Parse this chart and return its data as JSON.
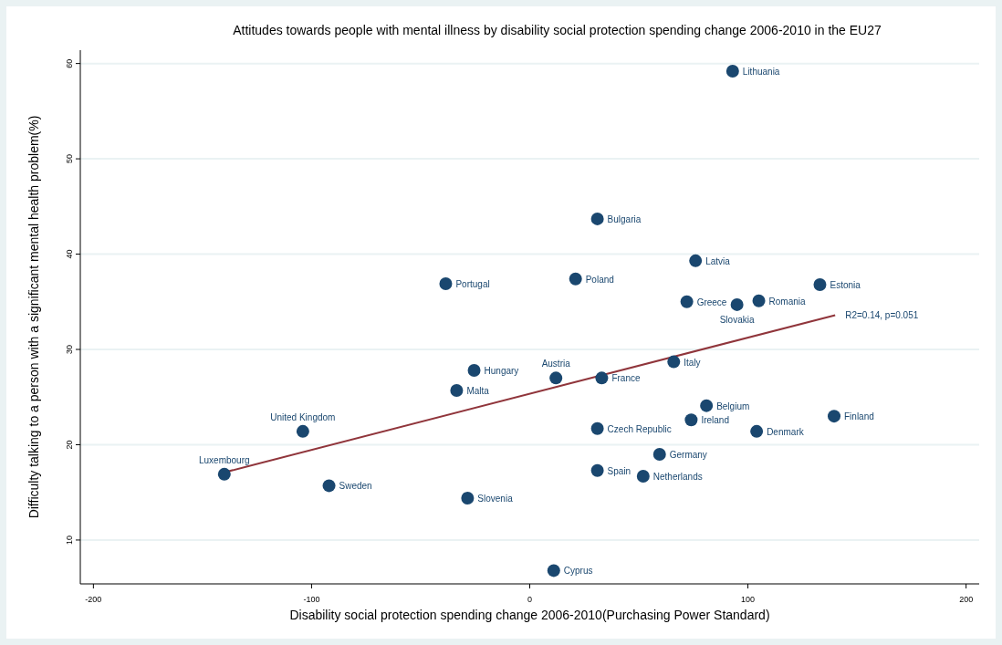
{
  "chart_data": {
    "type": "scatter",
    "title": "Attitudes towards people with mental illness by disability social protection spending change 2006-2010 in the EU27",
    "xlabel": "Disability social protection spending change 2006-2010(Purchasing Power Standard)",
    "ylabel": "Difficulty talking to a person with a significant mental health problem(%)",
    "xlim": [
      -206,
      206
    ],
    "xticks": [
      -200,
      -100,
      0,
      100,
      200
    ],
    "ylim": [
      5.4,
      61.4
    ],
    "yticks": [
      10,
      20,
      30,
      40,
      50,
      60
    ],
    "grid": "y",
    "series": [
      {
        "color": "#1a476f",
        "marker": "circle",
        "x": [
          93,
          31,
          76,
          133,
          21,
          -38.5,
          72,
          95,
          105,
          66,
          -25.5,
          12,
          33,
          -33.5,
          81,
          74,
          139.5,
          31,
          104,
          -104,
          59.5,
          31,
          52,
          -140,
          -92,
          -28.5,
          11
        ],
        "values": [
          59.2,
          43.7,
          39.3,
          36.8,
          37.4,
          36.9,
          35,
          34.7,
          35.1,
          28.7,
          27.8,
          27,
          27,
          25.7,
          24.1,
          22.6,
          23,
          21.7,
          21.4,
          21.4,
          19,
          17.3,
          16.7,
          16.9,
          15.7,
          14.4,
          6.8
        ]
      },
      {
        "type": "line",
        "marker": "none",
        "color": "#90353b",
        "x": [
          -140,
          140
        ],
        "values": [
          17.1,
          33.6
        ]
      }
    ],
    "annotations": [
      {
        "text": "Lithuania",
        "x": 93,
        "y": 59.2
      },
      {
        "text": "Bulgaria",
        "x": 31,
        "y": 43.7
      },
      {
        "text": "Latvia",
        "x": 76,
        "y": 39.3
      },
      {
        "text": "Estonia",
        "x": 133,
        "y": 36.8
      },
      {
        "text": "Poland",
        "x": 21,
        "y": 37.4
      },
      {
        "text": "Portugal",
        "x": -38.5,
        "y": 36.9
      },
      {
        "text": "Greece",
        "x": 72,
        "y": 35
      },
      {
        "text": "Slovakia",
        "x": 95,
        "y": 34.7
      },
      {
        "text": "Romania",
        "x": 105,
        "y": 35.1
      },
      {
        "text": "Italy",
        "x": 66,
        "y": 28.7
      },
      {
        "text": "Hungary",
        "x": -25.5,
        "y": 27.8
      },
      {
        "text": "Austria",
        "x": 12,
        "y": 27
      },
      {
        "text": "France",
        "x": 33,
        "y": 27
      },
      {
        "text": "Malta",
        "x": -33.5,
        "y": 25.7
      },
      {
        "text": "Belgium",
        "x": 81,
        "y": 24.1
      },
      {
        "text": "Ireland",
        "x": 74,
        "y": 22.6
      },
      {
        "text": "Finland",
        "x": 139.5,
        "y": 23
      },
      {
        "text": "Czech Republic",
        "x": 31,
        "y": 21.7
      },
      {
        "text": "Denmark",
        "x": 104,
        "y": 21.4
      },
      {
        "text": "United Kingdom",
        "x": -104,
        "y": 21.4
      },
      {
        "text": "Germany",
        "x": 59.5,
        "y": 19
      },
      {
        "text": "Spain",
        "x": 31,
        "y": 17.3
      },
      {
        "text": "Netherlands",
        "x": 52,
        "y": 16.7
      },
      {
        "text": "Luxembourg",
        "x": -140,
        "y": 16.9
      },
      {
        "text": "Sweden",
        "x": -92,
        "y": 15.7
      },
      {
        "text": "Slovenia",
        "x": -28.5,
        "y": 14.4
      },
      {
        "text": "Cyprus",
        "x": 11,
        "y": 6.8
      },
      {
        "text": "R2=0.14, p=0.051",
        "x": 140,
        "y": 33.6
      }
    ]
  }
}
